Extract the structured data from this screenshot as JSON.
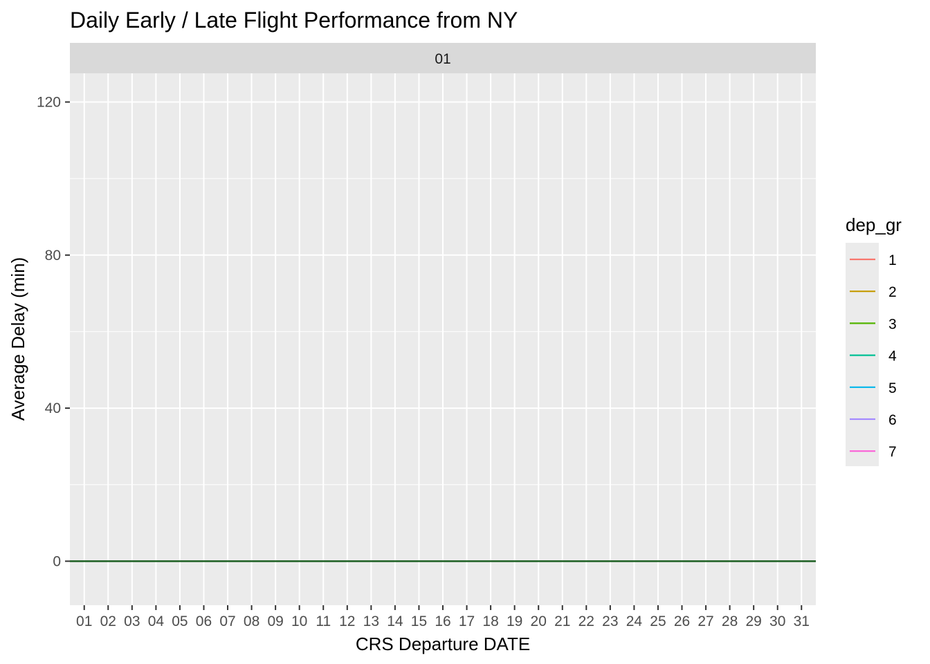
{
  "chart_data": {
    "type": "line",
    "title": "Daily Early / Late Flight Performance from NY",
    "facet_label": "01",
    "xlabel": "CRS Departure DATE",
    "ylabel": "Average Delay (min)",
    "categories": [
      "01",
      "02",
      "03",
      "04",
      "05",
      "06",
      "07",
      "08",
      "09",
      "10",
      "11",
      "12",
      "13",
      "14",
      "15",
      "16",
      "17",
      "18",
      "19",
      "20",
      "21",
      "22",
      "23",
      "24",
      "25",
      "26",
      "27",
      "28",
      "29",
      "30",
      "31"
    ],
    "ylim": [
      -11.5,
      127.5
    ],
    "yticks": [
      0,
      40,
      80,
      120
    ],
    "yticks_minor": [
      20,
      60,
      100
    ],
    "grid": true,
    "reference_line": {
      "y": 0,
      "color": "#1b5e20"
    },
    "legend": {
      "title": "dep_gr",
      "position": "right",
      "items": [
        {
          "label": "1",
          "color": "#F8766D"
        },
        {
          "label": "2",
          "color": "#C49A00"
        },
        {
          "label": "3",
          "color": "#53B400"
        },
        {
          "label": "4",
          "color": "#00C094"
        },
        {
          "label": "5",
          "color": "#00B6EB"
        },
        {
          "label": "6",
          "color": "#A58AFF"
        },
        {
          "label": "7",
          "color": "#FB61D7"
        }
      ]
    },
    "series": []
  },
  "colors": {
    "panel_background": "#EBEBEB",
    "strip_background": "#D9D9D9",
    "grid": "#FFFFFF",
    "tick": "#333333"
  }
}
